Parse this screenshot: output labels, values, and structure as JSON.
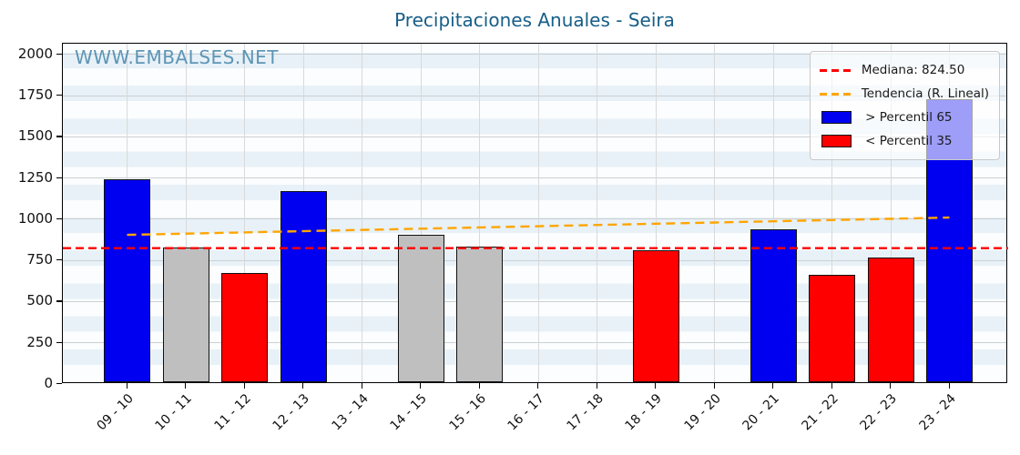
{
  "title": "Precipitaciones Anuales - Seira",
  "watermark": "WWW.EMBALSES.NET",
  "colors": {
    "title": "#175e87",
    "watermark": "#4e8cb0",
    "blue": "#0000f0",
    "red": "#ff0000",
    "gray": "#bfbfbf",
    "median_line": "#ff0000",
    "trend_line": "#ffa500"
  },
  "legend": {
    "items": [
      {
        "swatch": "dashed-line",
        "color_key": "median_line",
        "label": "Mediana: 824.50"
      },
      {
        "swatch": "dashed-line",
        "color_key": "trend_line",
        "label": "Tendencia (R. Lineal)"
      },
      {
        "swatch": "patch",
        "color_key": "blue",
        "label": " > Percentil 65"
      },
      {
        "swatch": "patch",
        "color_key": "red",
        "label": " < Percentil 35"
      }
    ]
  },
  "chart_data": {
    "type": "bar",
    "title": "Precipitaciones Anuales - Seira",
    "xlabel": "",
    "ylabel": "",
    "categories": [
      "09 - 10",
      "10 - 11",
      "11 - 12",
      "12 - 13",
      "13 - 14",
      "14 - 15",
      "15 - 16",
      "16 - 17",
      "17 - 18",
      "18 - 19",
      "19 - 20",
      "20 - 21",
      "21 - 22",
      "22 - 23",
      "23 - 24"
    ],
    "values": [
      1230,
      820,
      665,
      1160,
      null,
      895,
      825,
      null,
      null,
      800,
      null,
      925,
      650,
      755,
      1715
    ],
    "bar_color_classes": [
      "blue",
      "gray",
      "red",
      "blue",
      null,
      "gray",
      "gray",
      null,
      null,
      "red",
      null,
      "blue",
      "red",
      "red",
      "blue"
    ],
    "median": 824.5,
    "trend_line": {
      "model": "linear",
      "y_at_first_category": 905,
      "y_at_last_category": 1010
    },
    "ylim": [
      0,
      2065
    ],
    "yticks": [
      0,
      250,
      500,
      750,
      1000,
      1250,
      1500,
      1750,
      2000
    ],
    "grid": true,
    "background_stripes": true,
    "legend_position": "upper right"
  }
}
